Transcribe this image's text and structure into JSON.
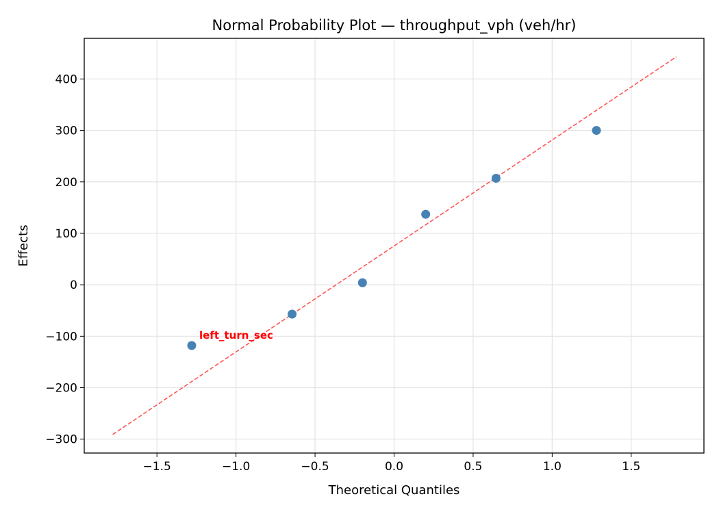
{
  "chart_data": {
    "type": "scatter",
    "title": "Normal Probability Plot — throughput_vph (veh/hr)",
    "xlabel": "Theoretical Quantiles",
    "ylabel": "Effects",
    "xlim": [
      -1.96,
      1.96
    ],
    "ylim": [
      -327,
      479
    ],
    "grid": true,
    "xticks": [
      -1.5,
      -1.0,
      -0.5,
      0.0,
      0.5,
      1.0,
      1.5
    ],
    "xtick_labels": [
      "−1.5",
      "−1.0",
      "−0.5",
      "0.0",
      "0.5",
      "1.0",
      "1.5"
    ],
    "yticks": [
      -300,
      -200,
      -100,
      0,
      100,
      200,
      300,
      400
    ],
    "ytick_labels": [
      "−300",
      "−200",
      "−100",
      "0",
      "100",
      "200",
      "300",
      "400"
    ],
    "points": {
      "x": [
        -1.28,
        -0.645,
        -0.2,
        0.2,
        0.645,
        1.28
      ],
      "y": [
        -118,
        -57,
        4,
        137,
        207,
        300
      ],
      "color": "#4682b4"
    },
    "reference_line": {
      "x": [
        -1.78,
        1.785
      ],
      "y": [
        -291,
        443
      ],
      "color": "#ff5555",
      "style": "dashed"
    },
    "annotations": [
      {
        "text": "left_turn_sec",
        "point_index": 0,
        "color": "#ff0000"
      }
    ]
  }
}
